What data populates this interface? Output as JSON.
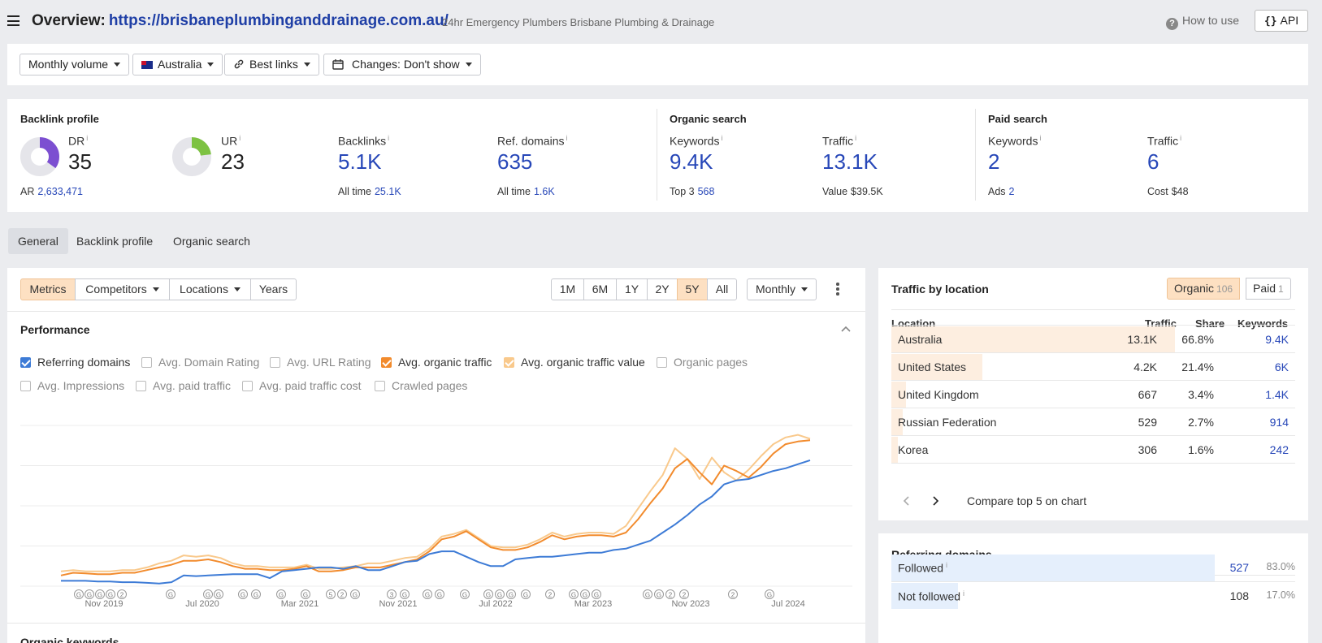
{
  "header": {
    "title_prefix": "Overview:",
    "url": "https://brisbaneplumbinganddrainage.com.au/",
    "subtitle": "24hr Emergency Plumbers Brisbane Plumbing & Drainage",
    "how_to_use": "How to use",
    "api_label": "API"
  },
  "filters": {
    "volume": "Monthly volume",
    "country": "Australia",
    "links": "Best links",
    "changes": "Changes: Don't show"
  },
  "backlink_profile": {
    "title": "Backlink profile",
    "dr_label": "DR",
    "dr_value": "35",
    "dr_fraction": 0.35,
    "ar_label": "AR",
    "ar_value": "2,633,471",
    "ur_label": "UR",
    "ur_value": "23",
    "ur_fraction": 0.23,
    "backlinks_label": "Backlinks",
    "backlinks_value": "5.1K",
    "backlinks_sub_label": "All time",
    "backlinks_sub_value": "25.1K",
    "refdomains_label": "Ref. domains",
    "refdomains_value": "635",
    "refdomains_sub_label": "All time",
    "refdomains_sub_value": "1.6K"
  },
  "organic_search": {
    "title": "Organic search",
    "keywords_label": "Keywords",
    "keywords_value": "9.4K",
    "keywords_sub_label": "Top 3",
    "keywords_sub_value": "568",
    "traffic_label": "Traffic",
    "traffic_value": "13.1K",
    "traffic_sub_label": "Value",
    "traffic_sub_value": "$39.5K"
  },
  "paid_search": {
    "title": "Paid search",
    "keywords_label": "Keywords",
    "keywords_value": "2",
    "keywords_sub_label": "Ads",
    "keywords_sub_value": "2",
    "traffic_label": "Traffic",
    "traffic_value": "6",
    "traffic_sub_label": "Cost",
    "traffic_sub_value": "$48"
  },
  "tabs": [
    "General",
    "Backlink profile",
    "Organic search"
  ],
  "chart_controls": {
    "metrics": "Metrics",
    "competitors": "Competitors",
    "locations": "Locations",
    "years": "Years",
    "ranges": [
      "1M",
      "6M",
      "1Y",
      "2Y",
      "5Y",
      "All"
    ],
    "active_range": "5Y",
    "interval": "Monthly",
    "more_icon": "vertical-dots-icon"
  },
  "performance": {
    "title": "Performance",
    "checkboxes": [
      {
        "label": "Referring domains",
        "checked": true,
        "color": "#3d7bd6"
      },
      {
        "label": "Avg. Domain Rating",
        "checked": false
      },
      {
        "label": "Avg. URL Rating",
        "checked": false
      },
      {
        "label": "Avg. organic traffic",
        "checked": true,
        "color": "#f28b2d"
      },
      {
        "label": "Avg. organic traffic value",
        "checked": true,
        "color": "#f9c98c"
      },
      {
        "label": "Organic pages",
        "checked": false
      },
      {
        "label": "Avg. Impressions",
        "checked": false
      },
      {
        "label": "Avg. paid traffic",
        "checked": false
      },
      {
        "label": "Avg. paid traffic cost",
        "checked": false
      },
      {
        "label": "Crawled pages",
        "checked": false
      }
    ],
    "next_section_title": "Organic keywords"
  },
  "chart_data": {
    "type": "line",
    "x_tick_labels": [
      "Nov 2019",
      "Jul 2020",
      "Mar 2021",
      "Nov 2021",
      "Jul 2022",
      "Mar 2023",
      "Nov 2023",
      "Jul 2024"
    ],
    "grid": true,
    "y_tick_labels_shown": false,
    "series": [
      {
        "name": "Referring domains",
        "color": "#3d7bd6",
        "values": [
          4,
          4,
          4,
          3.5,
          3.5,
          3,
          3,
          2.5,
          2,
          3,
          8,
          7.5,
          8,
          8.5,
          9,
          9,
          9,
          6,
          11,
          12,
          13,
          14,
          14,
          13,
          15,
          12,
          12,
          15,
          18,
          19,
          24,
          26,
          26,
          22,
          18,
          15,
          15,
          20,
          21,
          22,
          22,
          23,
          24,
          25,
          25,
          27,
          28,
          31,
          34,
          40,
          46,
          53,
          61,
          67,
          76,
          79,
          80,
          83,
          86,
          88,
          91,
          94
        ]
      },
      {
        "name": "Avg. organic traffic",
        "color": "#f28b2d",
        "values": [
          8,
          10,
          9.5,
          9,
          9,
          10,
          10,
          12,
          14,
          16,
          19,
          19,
          20,
          18,
          15,
          13,
          13,
          12,
          12,
          13,
          15,
          11,
          11,
          12,
          14,
          14,
          14,
          16,
          18,
          20,
          26,
          35,
          37,
          41,
          35,
          29,
          27,
          27,
          29,
          33,
          38,
          35,
          37,
          38,
          38,
          37,
          40,
          50,
          62,
          73,
          88,
          95,
          85,
          76,
          90,
          86,
          81,
          89,
          99,
          106,
          108,
          109
        ]
      },
      {
        "name": "Avg. organic traffic value",
        "color": "#f9c98c",
        "values": [
          11,
          12,
          11,
          11,
          11,
          12,
          12,
          14,
          17,
          19,
          23,
          22,
          23,
          21,
          17,
          15,
          15,
          14,
          14,
          14,
          16,
          13,
          13,
          14,
          15,
          17,
          17,
          19,
          21,
          22,
          28,
          37,
          39,
          42,
          36,
          30,
          29,
          29,
          31,
          35,
          40,
          37,
          39,
          40,
          40,
          39,
          45,
          58,
          71,
          83,
          103,
          95,
          80,
          96,
          85,
          79,
          87,
          97,
          106,
          111,
          113,
          110
        ]
      }
    ],
    "event_markers": [
      "G",
      "G",
      "G",
      "G",
      "2",
      "G",
      "G",
      "G",
      "G",
      "G",
      "G",
      "G",
      "5",
      "2",
      "G",
      "3",
      "G",
      "G",
      "G",
      "G",
      "G",
      "G",
      "G",
      "G",
      "2",
      "G",
      "G",
      "G",
      "G",
      "G",
      "2",
      "2",
      "2",
      "G"
    ]
  },
  "traffic_by_location": {
    "title": "Traffic by location",
    "organic_label": "Organic",
    "organic_count": "106",
    "paid_label": "Paid",
    "paid_count": "1",
    "columns": [
      "Location",
      "Traffic",
      "Share",
      "Keywords"
    ],
    "rows": [
      {
        "location": "Australia",
        "traffic": "13.1K",
        "share": "66.8%",
        "keywords": "9.4K",
        "share_fraction": 0.668
      },
      {
        "location": "United States",
        "traffic": "4.2K",
        "share": "21.4%",
        "keywords": "6K",
        "share_fraction": 0.214
      },
      {
        "location": "United Kingdom",
        "traffic": "667",
        "share": "3.4%",
        "keywords": "1.4K",
        "share_fraction": 0.034
      },
      {
        "location": "Russian Federation",
        "traffic": "529",
        "share": "2.7%",
        "keywords": "914",
        "share_fraction": 0.027
      },
      {
        "location": "Korea",
        "traffic": "306",
        "share": "1.6%",
        "keywords": "242",
        "share_fraction": 0.016
      }
    ],
    "compare_label": "Compare top 5 on chart"
  },
  "referring_domains": {
    "title": "Referring domains",
    "rows": [
      {
        "label": "Followed",
        "value": "527",
        "pct": "83.0%",
        "fraction": 0.83
      },
      {
        "label": "Not followed",
        "value": "108",
        "pct": "17.0%",
        "fraction": 0.17
      }
    ]
  }
}
